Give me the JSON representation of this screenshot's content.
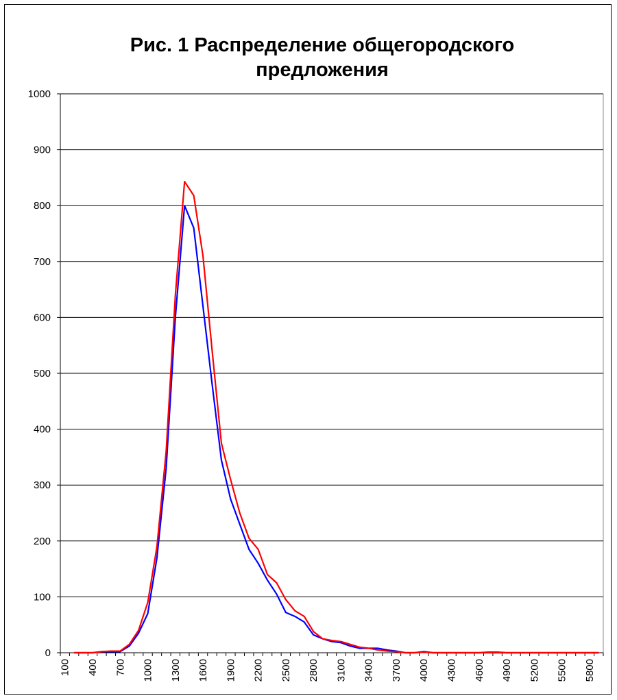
{
  "chart_data": {
    "type": "line",
    "title": "Рис. 1 Распределение общегородского предложения",
    "categories": [
      "100",
      null,
      null,
      "400",
      null,
      null,
      "700",
      null,
      null,
      "1000",
      null,
      null,
      "1300",
      null,
      null,
      "1600",
      null,
      null,
      "1900",
      null,
      null,
      "2200",
      null,
      null,
      "2500",
      null,
      null,
      "2800",
      null,
      null,
      "3100",
      null,
      null,
      "3400",
      null,
      null,
      "3700",
      null,
      null,
      "4000",
      null,
      null,
      "4300",
      null,
      null,
      "4600",
      null,
      null,
      "4900",
      null,
      null,
      "5200",
      null,
      null,
      "5500",
      null,
      null,
      "5800",
      null
    ],
    "series": [
      {
        "color": "#0000ff",
        "values": [
          null,
          0,
          0,
          0,
          2,
          2,
          2,
          12,
          35,
          70,
          170,
          330,
          600,
          800,
          760,
          620,
          480,
          345,
          275,
          230,
          185,
          160,
          130,
          105,
          72,
          65,
          55,
          32,
          25,
          20,
          18,
          12,
          8,
          8,
          8,
          5,
          3,
          0,
          0,
          2,
          0,
          0,
          0,
          0,
          0,
          0,
          1,
          1,
          0,
          0,
          0,
          0,
          0,
          0,
          0,
          0,
          0,
          0,
          0
        ]
      },
      {
        "color": "#ff0000",
        "values": [
          null,
          0,
          0,
          0,
          2,
          3,
          3,
          15,
          40,
          90,
          190,
          360,
          640,
          843,
          818,
          710,
          540,
          375,
          310,
          250,
          205,
          185,
          140,
          125,
          95,
          75,
          65,
          38,
          25,
          22,
          20,
          15,
          10,
          8,
          5,
          3,
          2,
          0,
          0,
          1,
          0,
          0,
          0,
          0,
          0,
          0,
          0,
          0,
          0,
          0,
          0,
          0,
          0,
          0,
          0,
          0,
          0,
          0,
          0
        ]
      }
    ],
    "ylim": [
      0,
      1000
    ],
    "yticks": [
      0,
      100,
      200,
      300,
      400,
      500,
      600,
      700,
      800,
      900,
      1000
    ],
    "grid": true
  }
}
